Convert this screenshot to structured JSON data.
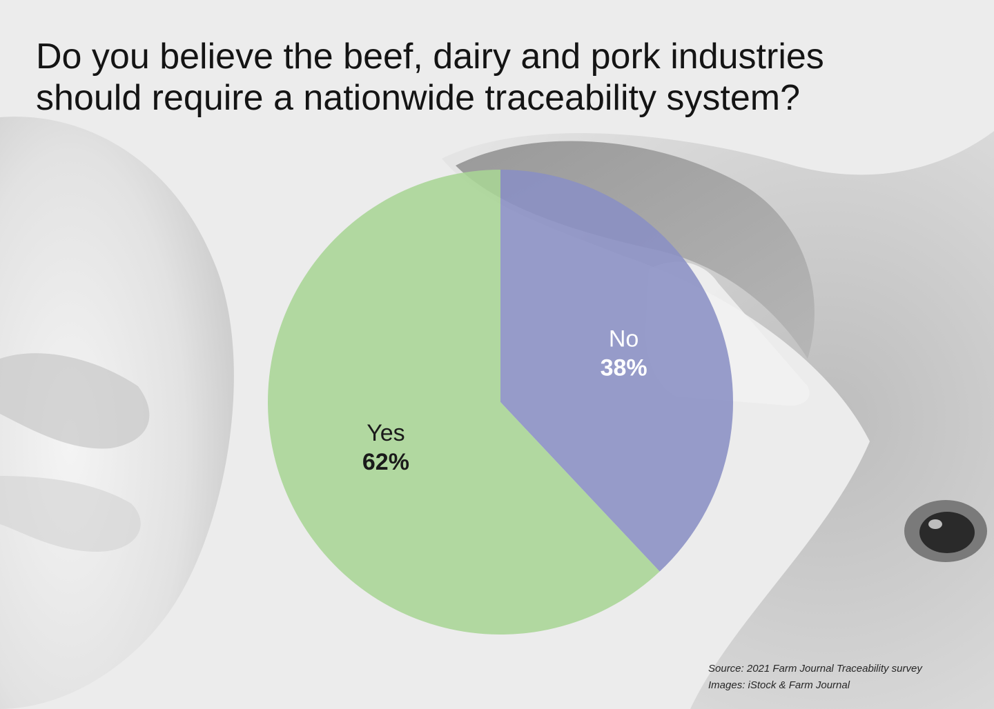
{
  "title": {
    "line1": "Do you believe the beef, dairy and pork industries",
    "line2": "should require a nationwide traceability system?"
  },
  "background": {
    "description_icon": "cattle-closeup-photo",
    "base_color": "#ececec"
  },
  "chart_data": {
    "type": "pie",
    "title": "Do you believe the beef, dairy and pork industries should require a nationwide traceability system?",
    "slices": [
      {
        "label": "No",
        "value": 38,
        "display": "38%",
        "color": "#8a8fc4"
      },
      {
        "label": "Yes",
        "value": 62,
        "display": "62%",
        "color": "#a8d595"
      }
    ],
    "start_angle_deg": 0,
    "direction": "clockwise",
    "legend": "none"
  },
  "source": {
    "line1": "Source: 2021 Farm Journal Traceability survey",
    "line2": "Images: iStock & Farm Journal"
  }
}
